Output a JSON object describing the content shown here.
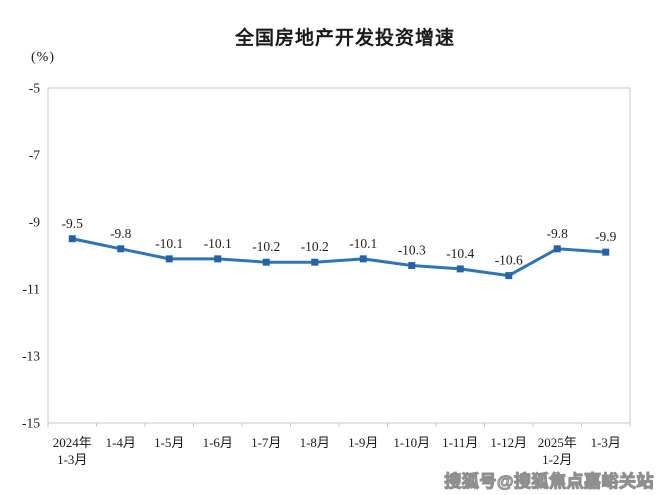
{
  "chart_data": {
    "type": "line",
    "title": "全国房地产开发投资增速",
    "ylabel": "(%)",
    "xlabel": "",
    "categories": [
      [
        "2024年",
        "1-3月"
      ],
      [
        "1-4月"
      ],
      [
        "1-5月"
      ],
      [
        "1-6月"
      ],
      [
        "1-7月"
      ],
      [
        "1-8月"
      ],
      [
        "1-9月"
      ],
      [
        "1-10月"
      ],
      [
        "1-11月"
      ],
      [
        "1-12月"
      ],
      [
        "2025年",
        "1-2月"
      ],
      [
        "1-3月"
      ]
    ],
    "values": [
      -9.5,
      -9.8,
      -10.1,
      -10.1,
      -10.2,
      -10.2,
      -10.1,
      -10.3,
      -10.4,
      -10.6,
      -9.8,
      -9.9
    ],
    "data_labels": [
      "-9.5",
      "-9.8",
      "-10.1",
      "-10.1",
      "-10.2",
      "-10.2",
      "-10.1",
      "-10.3",
      "-10.4",
      "-10.6",
      "-9.8",
      "-9.9"
    ],
    "ylim": [
      -15,
      -5
    ],
    "yticks": [
      -5,
      -7,
      -9,
      -11,
      -13,
      -15
    ],
    "grid": false,
    "legend": "none",
    "line_color": "#2E75B6",
    "marker_color": "#2663A4",
    "marker_shape": "square"
  },
  "watermark": {
    "text": "搜狐号@搜狐焦点嘉峪关站"
  }
}
